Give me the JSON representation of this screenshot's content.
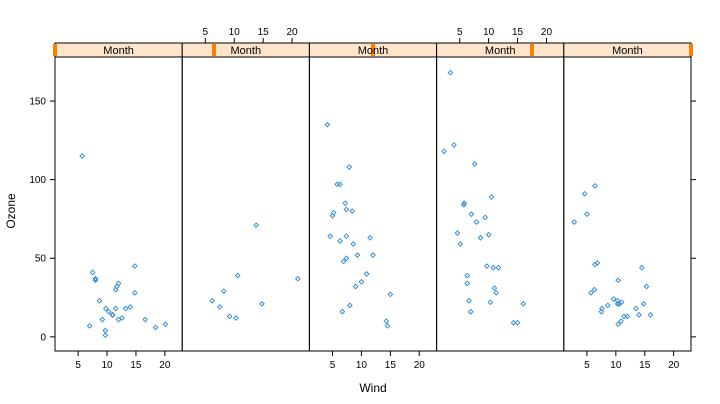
{
  "chart_data": {
    "type": "scatter",
    "xlabel": "Wind",
    "ylabel": "Ozone",
    "xlim": [
      1,
      23
    ],
    "ylim": [
      -9,
      178
    ],
    "x_ticks": [
      5,
      10,
      15,
      20
    ],
    "y_ticks": [
      0,
      50,
      100,
      150
    ],
    "colors": {
      "point": "#3a8fd8",
      "strip_bg": "#ffe5cc",
      "strip_indicator": "#ff7f00",
      "frame": "#000000"
    },
    "panels": [
      {
        "strip_label": "Month",
        "month_indicator": 5,
        "points": [
          [
            5.7,
            115
          ],
          [
            7.0,
            7
          ],
          [
            7.5,
            41
          ],
          [
            8.0,
            36
          ],
          [
            8.0,
            37
          ],
          [
            8.7,
            23
          ],
          [
            9.2,
            11
          ],
          [
            9.7,
            4
          ],
          [
            9.7,
            1
          ],
          [
            9.8,
            18
          ],
          [
            10.3,
            16
          ],
          [
            10.9,
            14
          ],
          [
            11.0,
            14
          ],
          [
            11.5,
            18
          ],
          [
            11.5,
            30
          ],
          [
            11.7,
            32
          ],
          [
            12.0,
            34
          ],
          [
            12.0,
            11
          ],
          [
            12.6,
            12
          ],
          [
            13.2,
            18
          ],
          [
            14.0,
            19
          ],
          [
            14.8,
            28
          ],
          [
            14.8,
            45
          ],
          [
            16.6,
            11
          ],
          [
            18.4,
            6
          ],
          [
            20.1,
            8
          ]
        ]
      },
      {
        "strip_label": "Month",
        "month_indicator": 6,
        "points": [
          [
            6.2,
            23
          ],
          [
            7.5,
            19
          ],
          [
            8.2,
            29
          ],
          [
            9.2,
            13
          ],
          [
            10.3,
            12
          ],
          [
            10.6,
            39
          ],
          [
            13.8,
            71
          ],
          [
            14.8,
            21
          ],
          [
            21.0,
            37
          ]
        ]
      },
      {
        "strip_label": "Month",
        "month_indicator": 7,
        "points": [
          [
            4.1,
            135
          ],
          [
            4.6,
            64
          ],
          [
            5.0,
            77
          ],
          [
            5.2,
            79
          ],
          [
            5.8,
            97
          ],
          [
            6.3,
            97
          ],
          [
            6.3,
            61
          ],
          [
            6.7,
            16
          ],
          [
            6.9,
            48
          ],
          [
            7.2,
            85
          ],
          [
            7.4,
            50
          ],
          [
            7.4,
            81
          ],
          [
            7.4,
            64
          ],
          [
            7.9,
            108
          ],
          [
            8.0,
            20
          ],
          [
            8.4,
            80
          ],
          [
            8.6,
            59
          ],
          [
            9.0,
            32
          ],
          [
            9.3,
            52
          ],
          [
            10.0,
            35
          ],
          [
            10.9,
            40
          ],
          [
            11.5,
            63
          ],
          [
            12.0,
            52
          ],
          [
            14.3,
            10
          ],
          [
            14.5,
            7
          ],
          [
            15.0,
            27
          ]
        ]
      },
      {
        "strip_label": "Month",
        "month_indicator": 8,
        "points": [
          [
            2.3,
            118
          ],
          [
            3.4,
            168
          ],
          [
            4.0,
            122
          ],
          [
            4.6,
            66
          ],
          [
            5.1,
            59
          ],
          [
            5.7,
            84
          ],
          [
            5.8,
            85
          ],
          [
            6.3,
            39
          ],
          [
            6.3,
            34
          ],
          [
            6.6,
            23
          ],
          [
            6.9,
            16
          ],
          [
            7.0,
            78
          ],
          [
            7.6,
            110
          ],
          [
            7.9,
            73
          ],
          [
            8.6,
            63
          ],
          [
            9.4,
            76
          ],
          [
            9.7,
            45
          ],
          [
            10.0,
            65
          ],
          [
            10.3,
            22
          ],
          [
            10.5,
            89
          ],
          [
            10.8,
            44
          ],
          [
            11.0,
            31
          ],
          [
            11.3,
            28
          ],
          [
            11.7,
            44
          ],
          [
            14.3,
            9
          ],
          [
            15.0,
            9
          ],
          [
            16.0,
            21
          ]
        ]
      },
      {
        "strip_label": "Month",
        "month_indicator": 9,
        "points": [
          [
            2.8,
            73
          ],
          [
            4.6,
            91
          ],
          [
            5.0,
            78
          ],
          [
            5.7,
            28
          ],
          [
            6.3,
            30
          ],
          [
            6.4,
            96
          ],
          [
            6.4,
            46
          ],
          [
            6.8,
            47
          ],
          [
            7.5,
            16
          ],
          [
            7.6,
            18
          ],
          [
            8.6,
            20
          ],
          [
            9.6,
            24
          ],
          [
            10.3,
            23
          ],
          [
            10.3,
            21
          ],
          [
            10.4,
            8
          ],
          [
            10.4,
            36
          ],
          [
            10.6,
            21
          ],
          [
            10.9,
            10
          ],
          [
            11.0,
            22
          ],
          [
            11.4,
            13
          ],
          [
            12.0,
            13
          ],
          [
            13.5,
            18
          ],
          [
            14.0,
            14
          ],
          [
            14.5,
            44
          ],
          [
            14.8,
            21
          ],
          [
            15.3,
            32
          ],
          [
            16.0,
            14
          ]
        ]
      }
    ]
  }
}
